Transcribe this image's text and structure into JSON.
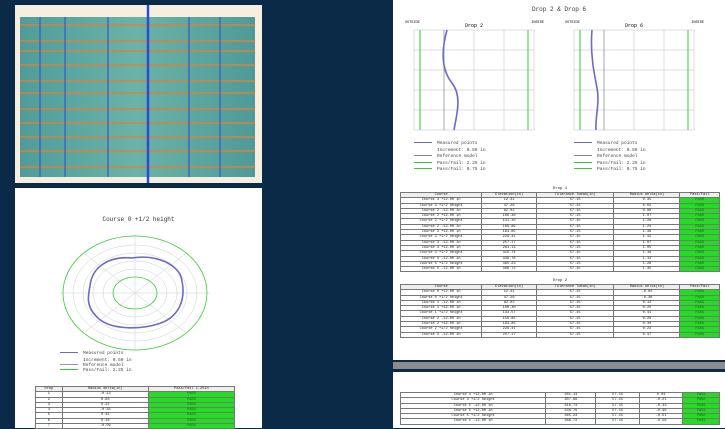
{
  "left": {
    "caption": "Course 0 +1/2 height",
    "legend": [
      "Measured points",
      "Increment: 0.50 in",
      "Reference model",
      "Pass/Fail: 2.25 in"
    ],
    "table": {
      "header": [
        "Drop",
        "Radius delta(in)",
        "Pass/Fail 1.25in"
      ],
      "rows": [
        [
          "1",
          "-0.13",
          "PASS"
        ],
        [
          "2",
          "0.63",
          "PASS"
        ],
        [
          "3",
          "0.22",
          "PASS"
        ],
        [
          "4",
          "-0.35",
          "PASS"
        ],
        [
          "5",
          "0.41",
          "PASS"
        ],
        [
          "6",
          "0.18",
          "PASS"
        ],
        [
          "7",
          "-0.09",
          "PASS"
        ]
      ]
    }
  },
  "right": {
    "title": "Drop 2 & Drop 6",
    "plots": [
      {
        "title": "Drop 2",
        "outside": "OUTSIDE",
        "inside": "INSIDE"
      },
      {
        "title": "Drop 6",
        "outside": "OUTSIDE",
        "inside": "INSIDE"
      }
    ],
    "legend": [
      "Measured points",
      "Increment: 0.50 in",
      "Reference model",
      "Pass/Fail: 2.25 in",
      "Pass/Fail: 0.75 in"
    ],
    "tables": [
      {
        "title": "Drop 1",
        "header": [
          "Course",
          "Elevation(in)",
          "Tolerance Tweak(in)",
          "Radius delta(in)",
          "Pass/Fail"
        ],
        "rows": [
          [
            "Course 3 +12.00 in",
            "12.41",
            "57.15",
            "0.35",
            "PASS"
          ],
          [
            "Course 3 +1/2 height",
            "47.26",
            "57.15",
            "0.62",
            "PASS"
          ],
          [
            "Course 2 -12.00 in",
            "82.02",
            "57.15",
            "0.86",
            "PASS"
          ],
          [
            "Course 2 +12.00 in",
            "106.30",
            "57.15",
            "1.07",
            "PASS"
          ],
          [
            "Course 2 +1/2 height",
            "141.10",
            "57.15",
            "1.28",
            "PASS"
          ],
          [
            "Course 2 -12.00 in",
            "169.89",
            "57.15",
            "1.24",
            "PASS"
          ],
          [
            "Course 3 +12.00 in",
            "193.85",
            "57.15",
            "1.36",
            "PASS"
          ],
          [
            "Course 3 +1/2 height",
            "229.41",
            "57.15",
            "1.42",
            "PASS"
          ],
          [
            "Course 3 -12.00 in",
            "257.17",
            "57.15",
            "1.07",
            "PASS"
          ],
          [
            "Course 4 +12.00 in",
            "281.13",
            "57.15",
            "1.05",
            "PASS"
          ],
          [
            "Course 4 +1/2 height",
            "316.74",
            "57.15",
            "1.16",
            "PASS"
          ],
          [
            "Course 4 -12.00 in",
            "338.76",
            "57.15",
            "1.14",
            "PASS"
          ],
          [
            "Course 5 +1/2 height",
            "365.23",
            "57.15",
            "1.28",
            "PASS"
          ],
          [
            "Course 5 -12.00 in",
            "386.72",
            "57.15",
            "1.35",
            "PASS"
          ]
        ]
      },
      {
        "title": "Drop 2",
        "header": [
          "Course",
          "Elevation(in)",
          "Tolerance Tweak(in)",
          "Radius delta(in)",
          "Pass/Fail"
        ],
        "rows": [
          [
            "Course 0 +12.00 in",
            "12.41",
            "57.15",
            "-0.02",
            "PASS"
          ],
          [
            "Course 0 +1/2 height",
            "47.26",
            "57.15",
            "-0.38",
            "PASS"
          ],
          [
            "Course 1 -12.00 in",
            "82.02",
            "57.15",
            "0.12",
            "PASS"
          ],
          [
            "Course 1 +12.00 in",
            "106.30",
            "57.15",
            "0.25",
            "PASS"
          ],
          [
            "Course 1 +1/2 height",
            "133.57",
            "57.15",
            "0.41",
            "PASS"
          ],
          [
            "Course 2 -12.00 in",
            "158.85",
            "57.15",
            "0.29",
            "PASS"
          ],
          [
            "Course 2 +12.00 in",
            "193.85",
            "57.15",
            "0.30",
            "PASS"
          ],
          [
            "Course 2 +1/2 height",
            "229.41",
            "57.15",
            "0.22",
            "PASS"
          ],
          [
            "Course 3 -12.00 in",
            "257.17",
            "57.15",
            "0.47",
            "PASS"
          ]
        ]
      }
    ],
    "bottom_table": {
      "rows": [
        [
          "Course 4 +12.00 in",
          "281.13",
          "57.15",
          "0.04",
          "PASS"
        ],
        [
          "Course 4 +1/2 height",
          "307.96",
          "57.15",
          "-0.21",
          "PASS"
        ],
        [
          "Course 5 -12.00 in",
          "316.74",
          "57.15",
          "-0.33",
          "PASS"
        ],
        [
          "Course 5 +12.00 in",
          "338.76",
          "57.15",
          "-0.46",
          "PASS"
        ],
        [
          "Course 5 +1/2 height",
          "365.23",
          "57.15",
          "-0.51",
          "PASS"
        ],
        [
          "Course 5 -12.00 in",
          "386.72",
          "57.15",
          "-0.58",
          "PASS"
        ]
      ]
    }
  }
}
